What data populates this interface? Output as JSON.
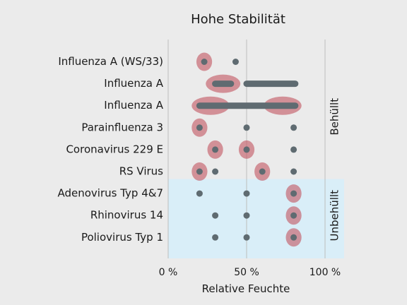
{
  "chart_data": {
    "type": "scatter",
    "title": "Hohe Stabilität",
    "xlabel": "Relative Feuchte",
    "xlim": [
      0,
      100
    ],
    "xticks": [
      0,
      50,
      100
    ],
    "xtick_labels": [
      "0 %",
      "50 %",
      "100 %"
    ],
    "categories": [
      "Influenza A (WS/33)",
      "Influenza A",
      "Influenza A",
      "Parainfluenza 3",
      "Coronavirus 229 E",
      "RS Virus",
      "Adenovirus Typ 4&7",
      "Rhinovirus 14",
      "Poliovirus Typ 1"
    ],
    "groups": [
      {
        "label": "Behüllt",
        "rows": [
          0,
          5
        ],
        "color": "#ebebeb"
      },
      {
        "label": "Unbehüllt",
        "rows": [
          6,
          8
        ],
        "color": "#d9eef8"
      }
    ],
    "tested": [
      {
        "row": 0,
        "points": [
          23,
          43
        ],
        "ranges": []
      },
      {
        "row": 1,
        "points": [],
        "ranges": [
          [
            30,
            40
          ],
          [
            50,
            81
          ]
        ]
      },
      {
        "row": 2,
        "points": [],
        "ranges": [
          [
            20,
            81
          ]
        ]
      },
      {
        "row": 3,
        "points": [
          20,
          50,
          80
        ],
        "ranges": []
      },
      {
        "row": 4,
        "points": [
          30,
          50,
          80
        ],
        "ranges": []
      },
      {
        "row": 5,
        "points": [
          20,
          30,
          60,
          80
        ],
        "ranges": []
      },
      {
        "row": 6,
        "points": [
          20,
          50,
          80
        ],
        "ranges": []
      },
      {
        "row": 7,
        "points": [
          30,
          50,
          80
        ],
        "ranges": []
      },
      {
        "row": 8,
        "points": [
          30,
          50,
          80
        ],
        "ranges": []
      }
    ],
    "high_stability": [
      {
        "row": 0,
        "center": 23,
        "width": 10
      },
      {
        "row": 1,
        "center": 35,
        "width": 22
      },
      {
        "row": 2,
        "center": 27,
        "width": 24
      },
      {
        "row": 2,
        "center": 73,
        "width": 24
      },
      {
        "row": 3,
        "center": 20,
        "width": 10
      },
      {
        "row": 4,
        "center": 30,
        "width": 10
      },
      {
        "row": 4,
        "center": 50,
        "width": 10
      },
      {
        "row": 5,
        "center": 20,
        "width": 10
      },
      {
        "row": 5,
        "center": 60,
        "width": 10
      },
      {
        "row": 6,
        "center": 80,
        "width": 10
      },
      {
        "row": 7,
        "center": 80,
        "width": 10
      },
      {
        "row": 8,
        "center": 80,
        "width": 10
      }
    ],
    "colors": {
      "tested": "#5f6b71",
      "stability": "#c2545f",
      "plot_bg": "#ebebeb",
      "unbehuellt_bg": "#d9eef8",
      "grid": "#bdbdbd"
    }
  }
}
